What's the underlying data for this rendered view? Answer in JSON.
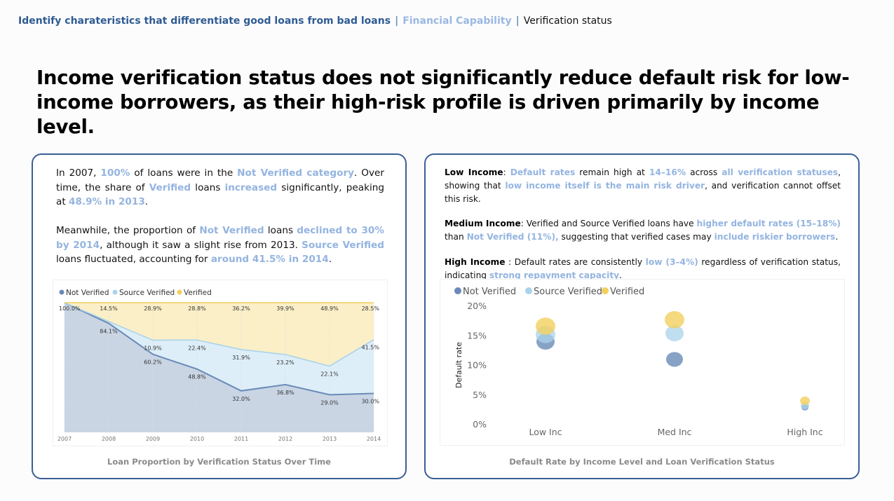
{
  "breadcrumb": {
    "main": "Identify charateristics that differentiate good loans from bad loans",
    "separator": "|",
    "section": "Financial Capability",
    "page": "Verification status"
  },
  "headline": "Income verification status does not significantly reduce default risk for low-income borrowers, as their high-risk profile is driven primarily by income level.",
  "left_card": {
    "paragraphs": [
      [
        {
          "t": "In 2007, "
        },
        {
          "t": "100%",
          "h": true
        },
        {
          "t": " of loans were in the "
        },
        {
          "t": "Not Verified category",
          "h": true
        },
        {
          "t": ". Over time, the share of "
        },
        {
          "t": "Verified",
          "h": true
        },
        {
          "t": " loans "
        },
        {
          "t": "increased",
          "h": true
        },
        {
          "t": " significantly, peaking at "
        },
        {
          "t": "48.9% in 2013",
          "h": true
        },
        {
          "t": "."
        }
      ],
      [
        {
          "t": "Meanwhile, the proportion of "
        },
        {
          "t": "Not Verified",
          "h": true
        },
        {
          "t": " loans "
        },
        {
          "t": "declined to 30% by 2014",
          "h": true
        },
        {
          "t": ", although it saw a slight rise from 2013. "
        },
        {
          "t": "Source Verified",
          "h": true
        },
        {
          "t": " loans fluctuated, accounting for "
        },
        {
          "t": "around 41.5% in 2014",
          "h": true
        },
        {
          "t": "."
        }
      ]
    ],
    "caption": "Loan Proportion by Verification Status Over Time"
  },
  "right_card": {
    "paragraphs": [
      [
        {
          "t": "Low Income",
          "k": true
        },
        {
          "t": ": "
        },
        {
          "t": "Default rates",
          "h": true
        },
        {
          "t": " remain high at "
        },
        {
          "t": "14–16%",
          "h": true
        },
        {
          "t": " across "
        },
        {
          "t": "all verification statuses",
          "h": true
        },
        {
          "t": ", showing that "
        },
        {
          "t": "low income itself is the main risk driver",
          "h": true
        },
        {
          "t": ", and verification cannot offset this risk."
        }
      ],
      [
        {
          "t": "Medium Income",
          "k": true
        },
        {
          "t": ": Verified and Source Verified loans have "
        },
        {
          "t": "higher default rates (15–18%)",
          "h": true
        },
        {
          "t": " than "
        },
        {
          "t": "Not Verified (11%),",
          "h": true
        },
        {
          "t": " suggesting that verified cases may "
        },
        {
          "t": "include riskier borrowers",
          "h": true
        },
        {
          "t": "."
        }
      ],
      [
        {
          "t": "High Income",
          "k": true
        },
        {
          "t": " : Default rates are consistently "
        },
        {
          "t": "low (3–4%)",
          "h": true
        },
        {
          "t": " regardless of verification status, indicating "
        },
        {
          "t": "strong repayment capacity",
          "h": true
        },
        {
          "t": "."
        }
      ]
    ],
    "caption": "Default Rate by Income Level and Loan Verification Status"
  },
  "colors": {
    "not_verified": "#6a8bb8",
    "source_verified": "#a9d3ea",
    "verified": "#f3cf5e",
    "highlight": "#94b4e0",
    "brand": "#2f5b93"
  },
  "chart_data": [
    {
      "type": "area",
      "stacked": "percent",
      "x": [
        "2007",
        "2008",
        "2009",
        "2010",
        "2011",
        "2012",
        "2013",
        "2014"
      ],
      "ylim": [
        0,
        100
      ],
      "legend": "top-left",
      "series": [
        {
          "name": "Not Verified",
          "values": [
            100.0,
            84.1,
            60.2,
            48.8,
            32.0,
            36.8,
            29.0,
            30.0
          ],
          "labels": [
            "100.0%",
            "84.1%",
            "60.2%",
            "48.8%",
            "32.0%",
            "36.8%",
            "29.0%",
            "30.0%"
          ]
        },
        {
          "name": "Source Verified",
          "values": [
            0,
            1.4,
            10.9,
            22.4,
            31.9,
            23.2,
            22.1,
            41.5
          ],
          "labels": [
            "",
            "",
            "10.9%",
            "22.4%",
            "31.9%",
            "23.2%",
            "22.1%",
            "41.5%"
          ]
        },
        {
          "name": "Verified",
          "values": [
            0,
            14.5,
            28.9,
            28.8,
            36.2,
            39.9,
            48.9,
            28.5
          ],
          "labels": [
            "",
            "14.5%",
            "28.9%",
            "28.8%",
            "36.2%",
            "39.9%",
            "48.9%",
            "28.5%"
          ]
        }
      ]
    },
    {
      "type": "scatter",
      "categories": [
        "Low Inc",
        "Med Inc",
        "High Inc"
      ],
      "ylabel": "Default rate",
      "ylim": [
        0,
        20
      ],
      "yticks": [
        "0%",
        "5%",
        "10%",
        "15%",
        "20%"
      ],
      "legend": "top-left",
      "series": [
        {
          "name": "Not Verified",
          "values": [
            13.9,
            10.9,
            2.8
          ]
        },
        {
          "name": "Source Verified",
          "values": [
            15.1,
            15.3,
            3.1
          ]
        },
        {
          "name": "Verified",
          "values": [
            16.5,
            17.6,
            3.9
          ]
        }
      ]
    }
  ]
}
